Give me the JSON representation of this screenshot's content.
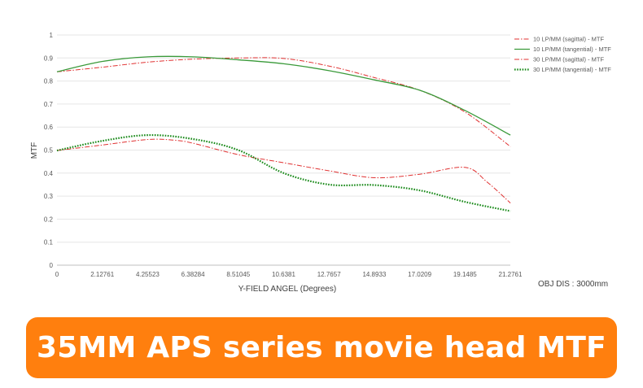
{
  "banner": {
    "title": "35MM APS series movie head MTF",
    "color": "#ff7f0e"
  },
  "note": "OBJ DIS : 3000mm",
  "chart_data": {
    "type": "line",
    "xlabel": "Y-FIELD ANGEL (Degrees)",
    "ylabel": "MTF",
    "xlim": [
      0,
      21.2761
    ],
    "ylim": [
      0,
      1
    ],
    "x_ticks": [
      "0",
      "2.12761",
      "4.25523",
      "6.38284",
      "8.51045",
      "10.6381",
      "12.7657",
      "14.8933",
      "17.0209",
      "19.1485",
      "21.2761"
    ],
    "y_ticks": [
      "0",
      "0.1",
      "0.2",
      "0.3",
      "0.4",
      "0.5",
      "0.6",
      "0.7",
      "0.8",
      "0.9",
      "1"
    ],
    "grid": "horizontal",
    "legend_position": "top-right",
    "series": [
      {
        "name": "10 LP/MM (sagittal) - MTF",
        "color": "#e03131",
        "dash": "dash-dot",
        "x": [
          0,
          2.13,
          4.26,
          6.38,
          8.51,
          10.64,
          12.77,
          14.89,
          17.02,
          19.15,
          21.28
        ],
        "y": [
          0.84,
          0.86,
          0.882,
          0.895,
          0.9,
          0.898,
          0.865,
          0.815,
          0.76,
          0.665,
          0.515
        ]
      },
      {
        "name": "10 LP/MM (tangential) - MTF",
        "color": "#3a9a3a",
        "dash": "solid",
        "x": [
          0,
          2.13,
          4.26,
          6.38,
          8.51,
          10.64,
          12.77,
          14.89,
          17.02,
          19.15,
          21.28
        ],
        "y": [
          0.84,
          0.885,
          0.905,
          0.905,
          0.892,
          0.875,
          0.845,
          0.805,
          0.76,
          0.672,
          0.565
        ]
      },
      {
        "name": "30 LP/MM (sagittal) - MTF",
        "color": "#e03131",
        "dash": "dash-dot",
        "x": [
          0,
          2.13,
          4.26,
          5.5,
          6.38,
          8.51,
          10.64,
          12.77,
          14.89,
          17.02,
          19.15,
          20.2,
          21.28
        ],
        "y": [
          0.498,
          0.522,
          0.546,
          0.543,
          0.53,
          0.48,
          0.445,
          0.41,
          0.38,
          0.395,
          0.425,
          0.36,
          0.27
        ]
      },
      {
        "name": "30 LP/MM (tangential) - MTF",
        "color": "#1a8a1a",
        "dash": "dotted",
        "x": [
          0,
          2.13,
          4.26,
          6.38,
          8.51,
          10.64,
          12.77,
          14.89,
          17.02,
          19.15,
          21.28
        ],
        "y": [
          0.498,
          0.54,
          0.565,
          0.548,
          0.5,
          0.4,
          0.35,
          0.348,
          0.325,
          0.275,
          0.235
        ]
      }
    ]
  }
}
